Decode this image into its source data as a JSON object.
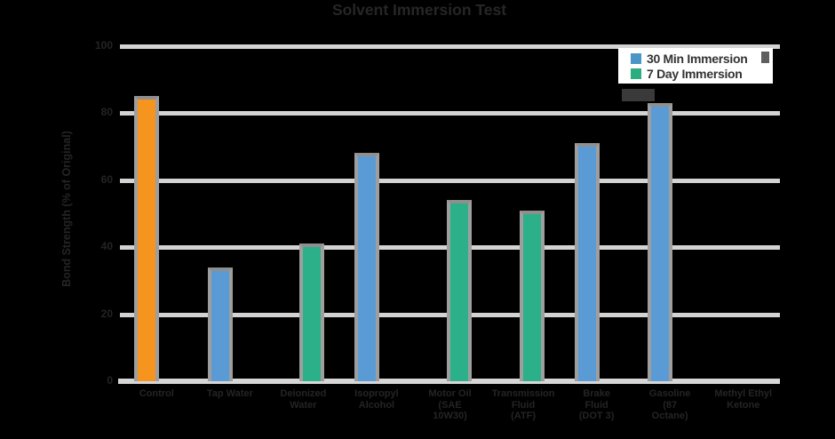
{
  "chart_data": {
    "type": "bar",
    "title": "Solvent Immersion Test",
    "ylabel": "Bond Strength (% of Original)",
    "xlabel": "",
    "ylim": [
      0,
      100
    ],
    "yticks": [
      100,
      80,
      60,
      40,
      20,
      0
    ],
    "grid": "horizontal",
    "legend_position": "top-right",
    "legend": [
      {
        "label": "30 Min Immersion",
        "color": "#4A96C8"
      },
      {
        "label": "7 Day Immersion",
        "color": "#2BAD80"
      }
    ],
    "categories": [
      "Control",
      "Tap Water",
      "Deionized Water",
      "Isopropyl Alcohol",
      "Motor Oil (SAE 10W30)",
      "Transmission Fluid (ATF)",
      "Brake Fluid (DOT 3)",
      "Gasoline (87 Octane)",
      "Methyl Ethyl Ketone"
    ],
    "bars": [
      {
        "label_lines": [
          "Control"
        ],
        "series": "control",
        "value": 84,
        "color": "#F5941F"
      },
      {
        "label_lines": [
          "Tap Water"
        ],
        "series": "30min",
        "value": 33,
        "color": "#5B9BD5"
      },
      {
        "label_lines": [
          "Deionized",
          "Water"
        ],
        "series": "7day",
        "value": 40,
        "color": "#2BB089"
      },
      {
        "label_lines": [
          "Isopropyl",
          "Alcohol"
        ],
        "series": "30min",
        "value": 67,
        "color": "#5B9BD5"
      },
      {
        "label_lines": [
          "Motor Oil",
          "(SAE",
          "10W30)"
        ],
        "series": "7day",
        "value": 53,
        "color": "#2BB089"
      },
      {
        "label_lines": [
          "Transmission",
          "Fluid",
          "(ATF)"
        ],
        "series": "7day",
        "value": 50,
        "color": "#2BB089"
      },
      {
        "label_lines": [
          "Brake",
          "Fluid",
          "(DOT 3)"
        ],
        "series": "30min",
        "value": 70,
        "color": "#5B9BD5"
      },
      {
        "label_lines": [
          "Gasoline",
          "(87",
          "Octane)"
        ],
        "series": "30min",
        "value": 82,
        "color": "#5B9BD5"
      },
      {
        "label_lines": [
          "Methyl Ethyl",
          "Ketone"
        ],
        "series": "none",
        "value": null,
        "color": null
      }
    ]
  },
  "colors": {
    "orange_bar": "#F5941F",
    "blue_bar": "#5B9BD5",
    "green_bar": "#2BB089",
    "bar_outline": "#9E9E9E",
    "gridline": "#D3D3D3",
    "dark_text": "#242424",
    "legend_background": "#FFFFFF",
    "legend_text": "#333333"
  }
}
